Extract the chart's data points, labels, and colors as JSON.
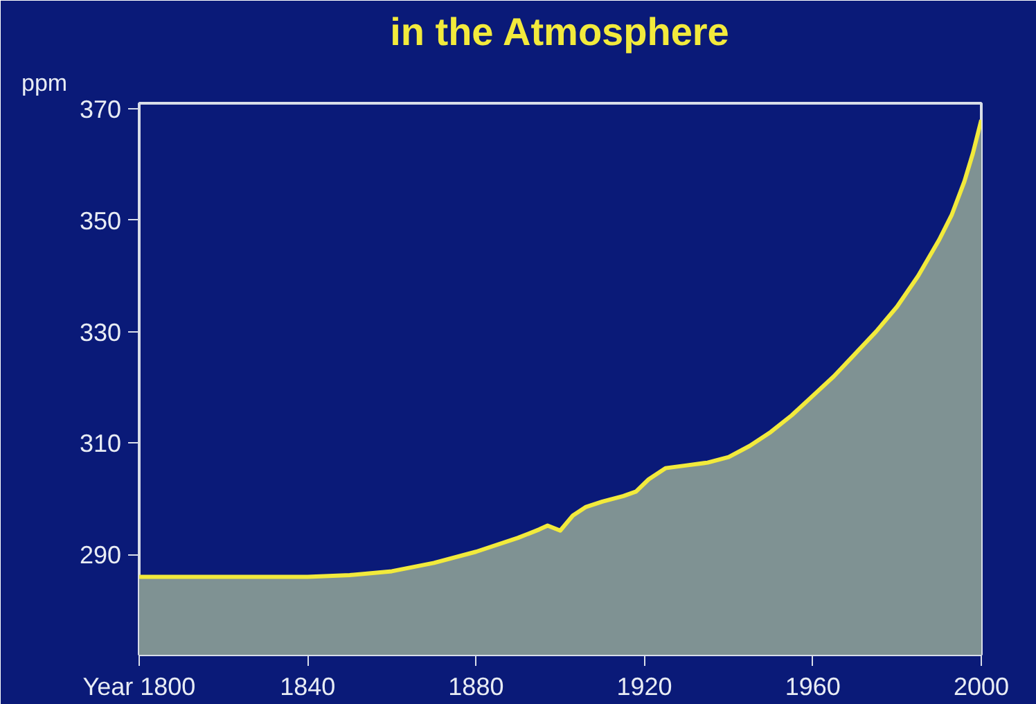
{
  "chart_data": {
    "type": "area",
    "title": "in the Atmosphere",
    "ylabel": "ppm",
    "x": [
      1800,
      1820,
      1840,
      1850,
      1860,
      1870,
      1880,
      1890,
      1895,
      1897,
      1900,
      1903,
      1906,
      1910,
      1915,
      1918,
      1921,
      1925,
      1930,
      1935,
      1940,
      1945,
      1950,
      1955,
      1960,
      1965,
      1970,
      1975,
      1980,
      1985,
      1990,
      1993,
      1996,
      1998,
      2000
    ],
    "series": [
      {
        "color": "#7f9293",
        "values": [
          286,
          286,
          286,
          286.3,
          287,
          288.5,
          290.5,
          293,
          294.5,
          295.2,
          294.3,
          297,
          298.5,
          299.5,
          300.5,
          301.3,
          303.5,
          305.5,
          306,
          306.5,
          307.5,
          309.5,
          312,
          315,
          318.5,
          322,
          326,
          330,
          334.5,
          340,
          346.5,
          351,
          357,
          362,
          368
        ]
      }
    ],
    "xlim": [
      1800,
      2000
    ],
    "xticks": [
      {
        "value": 1800,
        "label": "Year 1800"
      },
      1840,
      1880,
      1920,
      1960,
      2000
    ],
    "ylim": [
      272,
      371
    ],
    "yticks": [
      290,
      310,
      330,
      350,
      370
    ],
    "grid": false
  }
}
